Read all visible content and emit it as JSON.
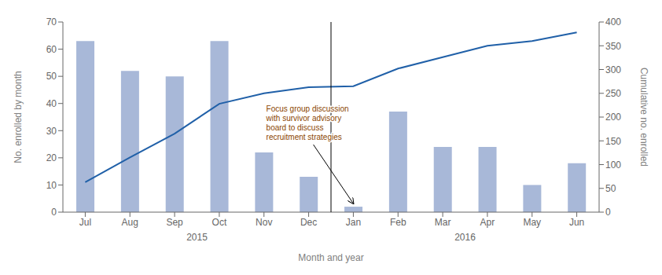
{
  "chart_data": {
    "type": "bar",
    "xlabel": "Month and year",
    "ylabel": "No. enrolled by month",
    "y2label": "Cumulative no. enrolled",
    "categories": [
      "Jul",
      "Aug",
      "Sep",
      "Oct",
      "Nov",
      "Dec",
      "Jan",
      "Feb",
      "Mar",
      "Apr",
      "May",
      "Jun"
    ],
    "series": [
      {
        "type": "bar",
        "color": "#a8b8d8",
        "values": [
          63,
          52,
          50,
          63,
          22,
          13,
          2,
          37,
          24,
          24,
          10,
          18
        ]
      },
      {
        "type": "line",
        "color": "#2060a8",
        "axis": "y2",
        "values": [
          63,
          115,
          165,
          228,
          250,
          263,
          265,
          302,
          326,
          350,
          360,
          378
        ]
      }
    ],
    "ylim": [
      0,
      70
    ],
    "yticks": [
      0,
      10,
      20,
      30,
      40,
      50,
      60,
      70
    ],
    "y2lim": [
      0,
      400
    ],
    "y2ticks": [
      0,
      50,
      100,
      150,
      200,
      250,
      300,
      350,
      400
    ],
    "grid": false,
    "annotations": [
      {
        "text": "2015",
        "span": [
          "Jul",
          "Dec"
        ]
      },
      {
        "text": "2016",
        "span": [
          "Jan",
          "Jun"
        ]
      },
      {
        "text": "Focus group discussion\nwith survivor advisory\nboard to discuss\nrecruitment strategies",
        "category": "Jan"
      }
    ]
  }
}
